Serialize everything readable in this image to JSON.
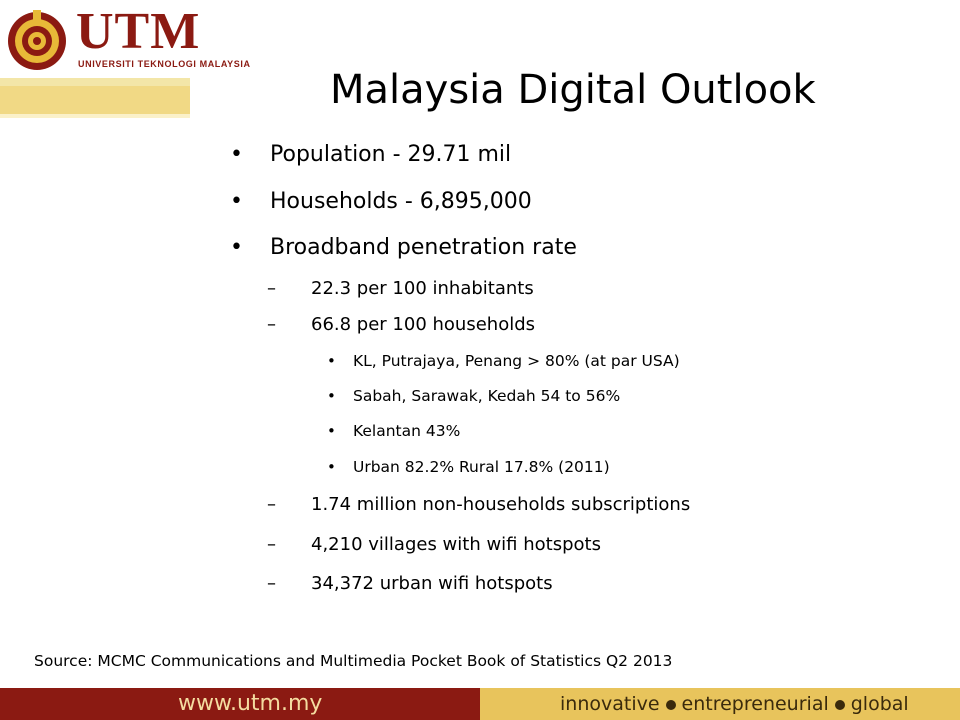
{
  "logo": {
    "name": "UTM",
    "subtitle": "UNIVERSITI TEKNOLOGI MALAYSIA",
    "brand_color": "#8b1a12"
  },
  "slide": {
    "title": "Malaysia Digital Outlook",
    "bullets": [
      {
        "text": "Population - 29.71 mil"
      },
      {
        "text": "Households - 6,895,000"
      },
      {
        "text": "Broadband penetration rate"
      }
    ],
    "sub_bullets": [
      {
        "text": "22.3 per 100 inhabitants"
      },
      {
        "text": "66.8 per 100 households"
      }
    ],
    "sub_sub_bullets": [
      {
        "text": "KL, Putrajaya, Penang  > 80%  (at par USA)"
      },
      {
        "text": "Sabah, Sarawak, Kedah 54 to 56%"
      },
      {
        "text": "Kelantan 43%"
      },
      {
        "text": "Urban 82.2%  Rural 17.8% (2011)"
      }
    ],
    "more_sub_bullets": [
      {
        "text": "1.74 million non-households subscriptions"
      },
      {
        "text": "4,210 villages with wifi hotspots"
      },
      {
        "text": "34,372 urban wifi hotspots"
      }
    ],
    "source": "Source: MCMC Communications and Multimedia Pocket Book of Statistics Q2 2013"
  },
  "footer": {
    "url": "www.utm.my",
    "tagline": [
      "innovative",
      "entrepreneurial",
      "global"
    ],
    "left_color": "#8b1a12",
    "right_color": "#e8c45c"
  },
  "markers": {
    "level1": "•",
    "level2": "–",
    "level3": "•"
  }
}
